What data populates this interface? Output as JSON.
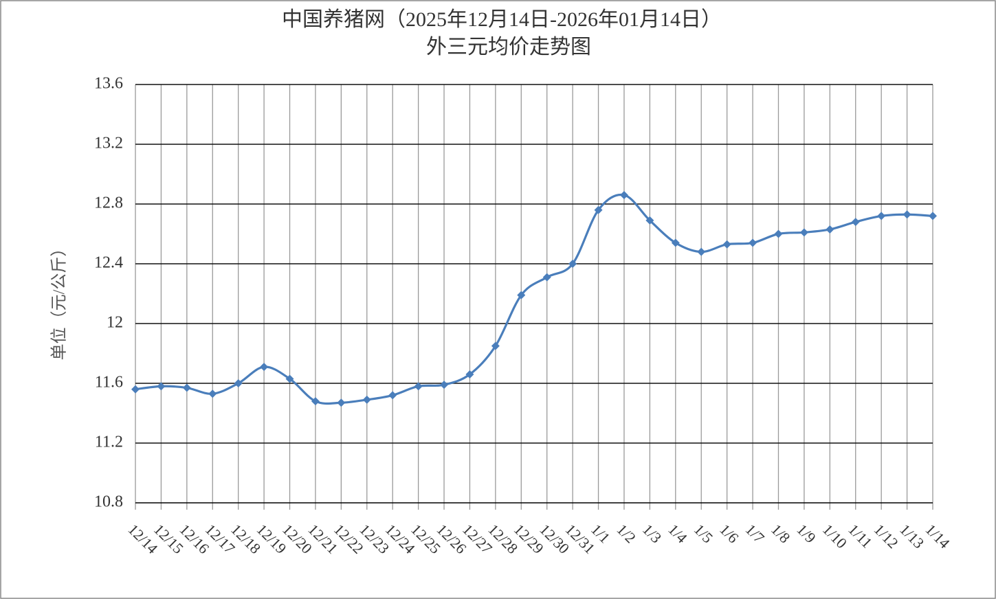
{
  "chart_data": {
    "type": "line",
    "title": "中国养猪网（2025年12月14日-2026年01月14日）",
    "subtitle": "外三元均价走势图",
    "y_label": "单位（元/公斤）",
    "categories": [
      "12/14",
      "12/15",
      "12/16",
      "12/17",
      "12/18",
      "12/19",
      "12/20",
      "12/21",
      "12/22",
      "12/23",
      "12/24",
      "12/25",
      "12/26",
      "12/27",
      "12/28",
      "12/29",
      "12/30",
      "12/31",
      "1/1",
      "1/2",
      "1/3",
      "1/4",
      "1/5",
      "1/6",
      "1/7",
      "1/8",
      "1/9",
      "1/10",
      "1/11",
      "1/12",
      "1/13",
      "1/14"
    ],
    "series": [
      {
        "name": "外三元",
        "color": "#4a7ebb",
        "values": [
          11.56,
          11.58,
          11.57,
          11.53,
          11.6,
          11.71,
          11.63,
          11.48,
          11.47,
          11.49,
          11.52,
          11.58,
          11.59,
          11.66,
          11.85,
          12.19,
          12.31,
          12.4,
          12.76,
          12.86,
          12.69,
          12.54,
          12.48,
          12.53,
          12.54,
          12.6,
          12.61,
          12.63,
          12.68,
          12.72,
          12.73,
          12.72
        ]
      }
    ],
    "ylim": [
      10.8,
      13.6
    ],
    "yticks": [
      10.8,
      11.2,
      11.6,
      12,
      12.4,
      12.8,
      13.2,
      13.6
    ],
    "grid": true,
    "smooth": true,
    "marker": "diamond"
  }
}
